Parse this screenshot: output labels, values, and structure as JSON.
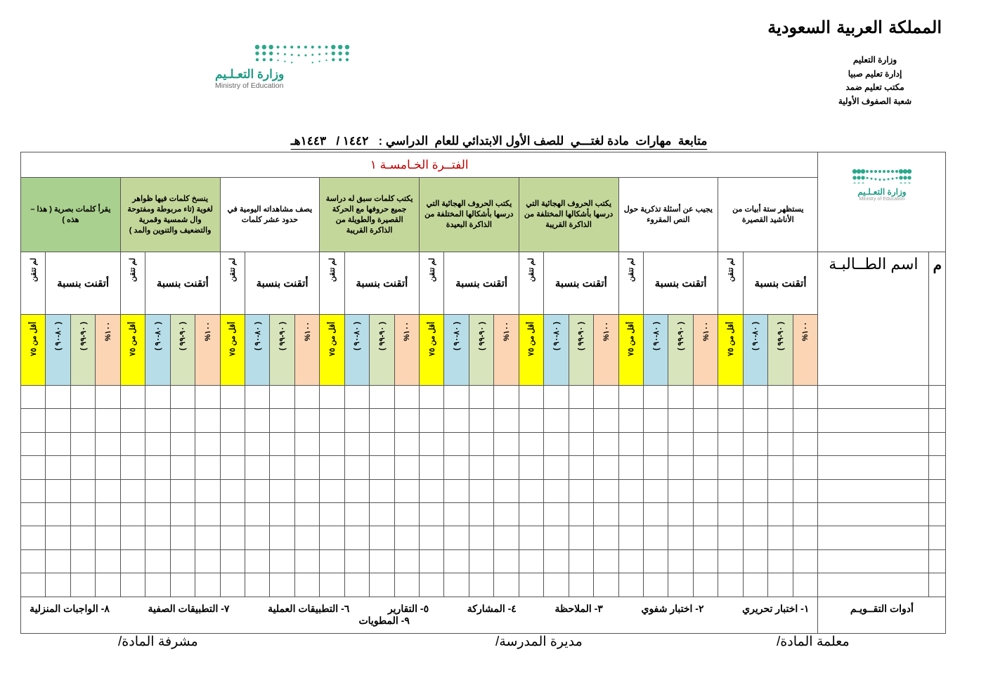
{
  "header": {
    "kingdom_logo_text": "المملكة العربية السعودية",
    "admin_lines": [
      "وزارة التعليم",
      "إدارة تعليم صبيا",
      "مكتب تعليم ضمد",
      "شعبة الصفوف الأولية"
    ],
    "moe_logo": {
      "ar": "وزارة التعـلـيم",
      "en": "Ministry of Education"
    },
    "title": "متابعة  مهارات  مادة لغتـــي  للصف الأول الابتدائي للعام  الدراسي :   ١٤٤٢ /   ١٤٤٣هـ"
  },
  "table": {
    "period": "الفتــرة الخـامسـة ١",
    "name_header": "اسم الطــالبـة",
    "index_header": "م",
    "mastered_label": "أتقنت بنسبة",
    "not_mastered_label": "لم تتقن",
    "bands": [
      "أقل من ٧٥",
      "( ٨٠-٩٠ )",
      "( ٩٠-٩٩ )",
      "١٠٠%"
    ],
    "band_colors": [
      "#ffff00",
      "#b7dee8",
      "#d8e4bc",
      "#fcd5b4"
    ],
    "skills": [
      {
        "text": "يستظهر ستة أبيات من الأناشيد القصيرة",
        "color": "#ffffff"
      },
      {
        "text": "يجيب عن أسئلة تذكرية حول النص المقروء",
        "color": "#ffffff"
      },
      {
        "text": "يكتب الحروف الهجائية التي درسها بأشكالها المختلفة من الذاكرة القريبة",
        "color": "#c4d79b"
      },
      {
        "text": "يكتب الحروف الهجائية التي درسها بأشكالها المختلفة من الذاكرة البعيدة",
        "color": "#c4d79b"
      },
      {
        "text": "يكتب كلمات سبق له دراسة جميع حروفها مع الحركة القصيرة والطويلة من الذاكرة القريبة",
        "color": "#c4d79b"
      },
      {
        "text": "يصف مشاهداته اليومية في حدود عشر كلمات",
        "color": "#ffffff"
      },
      {
        "text": "ينسخ كلمات فيها ظواهر لغوية (تاء مربوطة ومفتوحة وال شمسية وقمرية والتضعيف والتنوين والمد )",
        "color": "#c4d79b"
      },
      {
        "text": "يقرأ كلمات بصرية ( هذا – هذه )",
        "color": "#a9d08e"
      }
    ],
    "empty_rows": 9,
    "tools_label": "أدوات التقــويـم",
    "tools": [
      "١- اختبار تحريري",
      "٢- اختبار شفوي",
      "٣- الملاحظة",
      "٤- المشاركة",
      "٥- التقارير",
      "٦- التطبيقات العملية",
      "٧- التطبيقات الصفية",
      "٨- الواجبات المنزلية",
      "٩- المطويات"
    ]
  },
  "signatures": {
    "teacher": "معلمة المادة/",
    "principal": "مديرة المدرسة/",
    "supervisor": "مشرفة المادة/"
  }
}
